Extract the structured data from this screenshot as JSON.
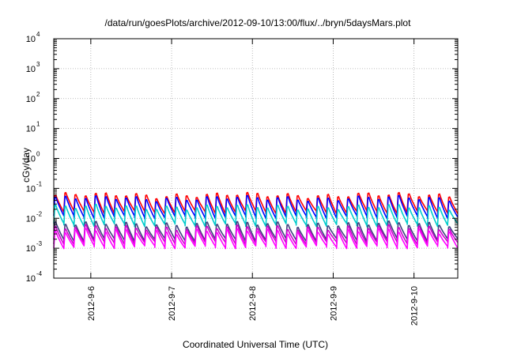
{
  "chart_data": {
    "type": "line",
    "title": "/data/run/goesPlots/archive/2012-09-10/13:00/flux/../bryn/5daysMars.plot",
    "xlabel": "Coordinated Universal Time (UTC)",
    "ylabel": "cGy/day",
    "yscale": "log",
    "ylim": [
      0.0001,
      10000
    ],
    "xlim": [
      "2012-09-05 13:00",
      "2012-09-10 13:00"
    ],
    "grid": true,
    "y_ticks": [
      {
        "base": "10",
        "exp": "-4"
      },
      {
        "base": "10",
        "exp": "-3"
      },
      {
        "base": "10",
        "exp": "-2"
      },
      {
        "base": "10",
        "exp": "-1"
      },
      {
        "base": "10",
        "exp": "0"
      },
      {
        "base": "10",
        "exp": "1"
      },
      {
        "base": "10",
        "exp": "2"
      },
      {
        "base": "10",
        "exp": "3"
      },
      {
        "base": "10",
        "exp": "4"
      }
    ],
    "x_ticks": [
      "2012-9-6",
      "2012-9-7",
      "2012-9-8",
      "2012-9-9",
      "2012-9-10"
    ],
    "periodic_pattern": {
      "x_start": "2012-09-05 13:00",
      "x_end": "2012-09-10 13:00",
      "cycle_hours": 3
    },
    "series": [
      {
        "color": "#ff0000",
        "peak": 0.075,
        "trough": 0.016
      },
      {
        "color": "#0000ff",
        "peak": 0.06,
        "trough": 0.011
      },
      {
        "color": "#00cccc",
        "peak": 0.03,
        "trough": 0.006
      },
      {
        "color": "#404080",
        "peak": 0.008,
        "trough": 0.0019
      },
      {
        "color": "#cc00cc",
        "peak": 0.006,
        "trough": 0.0015
      },
      {
        "color": "#ff00ff",
        "peak": 0.0045,
        "trough": 0.0011
      }
    ]
  }
}
